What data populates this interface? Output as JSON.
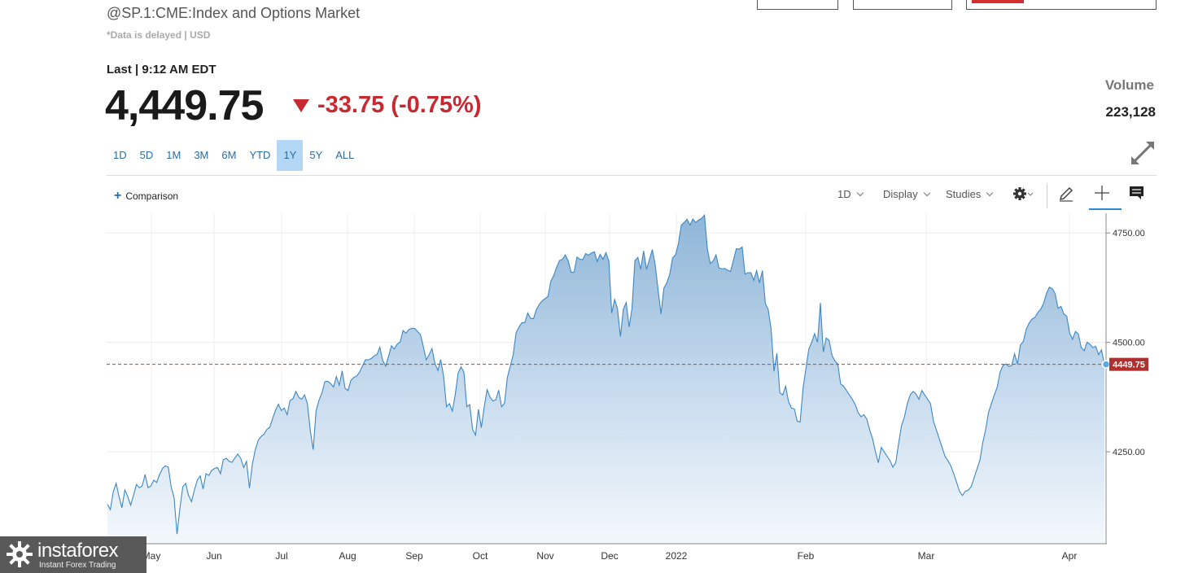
{
  "header": {
    "title": "@SP.1:CME:Index and Options Market",
    "subtitle": "*Data is delayed | USD",
    "last_line": "Last | 9:12 AM EDT",
    "price": "4,449.75",
    "change": "-33.75 (-0.75%)",
    "volume_label": "Volume",
    "volume_value": "223,128"
  },
  "ranges": [
    "1D",
    "5D",
    "1M",
    "3M",
    "6M",
    "YTD",
    "1Y",
    "5Y",
    "ALL"
  ],
  "active_range": "1Y",
  "toolbar": {
    "comparison": "Comparison",
    "interval": "1D",
    "display": "Display",
    "studies": "Studies"
  },
  "logo": {
    "name": "instaforex",
    "tagline": "Instant Forex Trading"
  },
  "colors": {
    "line": "#3d87c3",
    "down": "#c8282f",
    "active_range_bg": "#b3d7f5",
    "price_tag": "#b03030"
  },
  "chart_data": {
    "type": "area",
    "y_ticks": [
      4250,
      4500,
      4750
    ],
    "y_tick_labels": [
      "4250.00",
      "4500.00",
      "4750.00"
    ],
    "ylim": [
      4040,
      4795
    ],
    "x_month_labels": [
      "May",
      "Jun",
      "Jul",
      "Aug",
      "Sep",
      "Oct",
      "Nov",
      "Dec",
      "2022",
      "Feb",
      "Mar",
      "Apr"
    ],
    "last_value": 4449.75,
    "last_value_label": "4449.75",
    "grid": true,
    "values": [
      4130,
      4118,
      4158,
      4178,
      4148,
      4122,
      4163,
      4148,
      4128,
      4150,
      4175,
      4168,
      4172,
      4198,
      4168,
      4172,
      4185,
      4180,
      4198,
      4212,
      4218,
      4215,
      4170,
      4145,
      4062,
      4120,
      4170,
      4178,
      4150,
      4136,
      4162,
      4185,
      4195,
      4165,
      4200,
      4196,
      4208,
      4212,
      4214,
      4200,
      4232,
      4235,
      4228,
      4226,
      4236,
      4245,
      4235,
      4214,
      4228,
      4167,
      4222,
      4254,
      4276,
      4285,
      4290,
      4301,
      4306,
      4326,
      4345,
      4359,
      4344,
      4350,
      4335,
      4367,
      4371,
      4388,
      4375,
      4370,
      4380,
      4360,
      4298,
      4255,
      4344,
      4368,
      4384,
      4410,
      4411,
      4406,
      4398,
      4422,
      4402,
      4435,
      4395,
      4390,
      4413,
      4420,
      4423,
      4432,
      4446,
      4460,
      4460,
      4463,
      4469,
      4472,
      4489,
      4458,
      4446,
      4468,
      4492,
      4485,
      4496,
      4501,
      4527,
      4521,
      4529,
      4532,
      4532,
      4525,
      4518,
      4490,
      4460,
      4472,
      4486,
      4452,
      4436,
      4461,
      4422,
      4353,
      4360,
      4343,
      4380,
      4430,
      4444,
      4432,
      4353,
      4358,
      4301,
      4288,
      4347,
      4305,
      4352,
      4392,
      4375,
      4366,
      4369,
      4391,
      4353,
      4361,
      4420,
      4446,
      4471,
      4522,
      4535,
      4545,
      4545,
      4567,
      4555,
      4554,
      4575,
      4587,
      4595,
      4600,
      4605,
      4640,
      4653,
      4672,
      4687,
      4690,
      4700,
      4686,
      4660,
      4660,
      4695,
      4690,
      4689,
      4703,
      4699,
      4704,
      4707,
      4685,
      4701,
      4690,
      4705,
      4686,
      4567,
      4598,
      4577,
      4513,
      4576,
      4591,
      4535,
      4577,
      4687,
      4694,
      4667,
      4709,
      4667,
      4689,
      4712,
      4678,
      4620,
      4565,
      4624,
      4636,
      4655,
      4693,
      4700,
      4725,
      4768,
      4774,
      4781,
      4768,
      4782,
      4774,
      4780,
      4783,
      4791,
      4714,
      4680,
      4686,
      4700,
      4670,
      4668,
      4669,
      4665,
      4662,
      4688,
      4714,
      4713,
      4718,
      4656,
      4659,
      4659,
      4642,
      4664,
      4636,
      4664,
      4589,
      4575,
      4530,
      4434,
      4475,
      4385,
      4380,
      4400,
      4365,
      4350,
      4348,
      4320,
      4318,
      4395,
      4440,
      4485,
      4500,
      4520,
      4500,
      4590,
      4478,
      4510,
      4505,
      4470,
      4458,
      4450,
      4405,
      4400,
      4390,
      4380,
      4370,
      4358,
      4340,
      4330,
      4335,
      4325,
      4300,
      4280,
      4250,
      4225,
      4260,
      4250,
      4240,
      4230,
      4215,
      4225,
      4270,
      4310,
      4330,
      4360,
      4380,
      4388,
      4382,
      4370,
      4390,
      4380,
      4370,
      4360,
      4320,
      4300,
      4280,
      4260,
      4240,
      4230,
      4218,
      4200,
      4180,
      4160,
      4150,
      4160,
      4162,
      4170,
      4190,
      4210,
      4230,
      4270,
      4300,
      4340,
      4360,
      4380,
      4397,
      4432,
      4447,
      4451,
      4445,
      4447,
      4474,
      4450,
      4494,
      4502,
      4530,
      4544,
      4553,
      4557,
      4568,
      4576,
      4589,
      4612,
      4626,
      4623,
      4611,
      4578,
      4582,
      4565,
      4560,
      4521,
      4507,
      4525,
      4519,
      4488,
      4481,
      4500,
      4496,
      4488,
      4491,
      4472,
      4483,
      4449.75
    ]
  }
}
